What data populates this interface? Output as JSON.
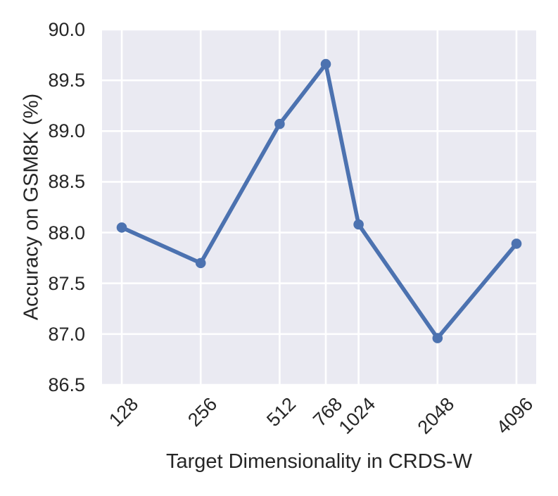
{
  "figure": {
    "xlabel": "Target Dimensionality in CRDS-W",
    "ylabel": "Accuracy on GSM8K (%)"
  },
  "chart_data": {
    "type": "line",
    "xlabel": "Target Dimensionality in CRDS-W",
    "ylabel": "Accuracy on GSM8K (%)",
    "x": [
      128,
      256,
      512,
      768,
      1024,
      2048,
      4096
    ],
    "y": [
      88.05,
      87.7,
      89.07,
      89.66,
      88.08,
      86.96,
      87.89
    ],
    "x_tick_labels": [
      "128",
      "256",
      "512",
      "768",
      "1024",
      "2048",
      "4096"
    ],
    "y_ticks": [
      90.0,
      89.5,
      89.0,
      88.5,
      88.0,
      87.5,
      87.0,
      86.5
    ],
    "y_tick_labels": [
      "90.0",
      "89.5",
      "89.0",
      "88.5",
      "88.0",
      "87.5",
      "87.0",
      "86.5"
    ],
    "x_scale": "log2",
    "xlim_log2": [
      6.75,
      12.25
    ],
    "ylim": [
      86.5,
      90.0
    ],
    "grid": true,
    "legend": false,
    "marker": "circle",
    "colors": {
      "line": "#4C72B0",
      "marker": "#4C72B0",
      "plot_background": "#EAEAF2",
      "gridline": "#FFFFFF",
      "text": "#262626",
      "figure_background": "#FFFFFF"
    }
  }
}
